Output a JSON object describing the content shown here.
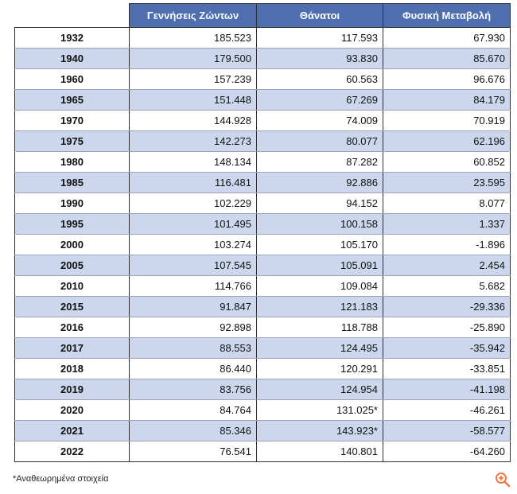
{
  "table": {
    "headers": [
      "",
      "Γεννήσεις Ζώντων",
      "Θάνατοι",
      "Φυσική Μεταβολή"
    ],
    "rows": [
      {
        "year": "1932",
        "births": "185.523",
        "deaths": "117.593",
        "change": "67.930"
      },
      {
        "year": "1940",
        "births": "179.500",
        "deaths": "93.830",
        "change": "85.670"
      },
      {
        "year": "1960",
        "births": "157.239",
        "deaths": "60.563",
        "change": "96.676"
      },
      {
        "year": "1965",
        "births": "151.448",
        "deaths": "67.269",
        "change": "84.179"
      },
      {
        "year": "1970",
        "births": "144.928",
        "deaths": "74.009",
        "change": "70.919"
      },
      {
        "year": "1975",
        "births": "142.273",
        "deaths": "80.077",
        "change": "62.196"
      },
      {
        "year": "1980",
        "births": "148.134",
        "deaths": "87.282",
        "change": "60.852"
      },
      {
        "year": "1985",
        "births": "116.481",
        "deaths": "92.886",
        "change": "23.595"
      },
      {
        "year": "1990",
        "births": "102.229",
        "deaths": "94.152",
        "change": "8.077"
      },
      {
        "year": "1995",
        "births": "101.495",
        "deaths": "100.158",
        "change": "1.337"
      },
      {
        "year": "2000",
        "births": "103.274",
        "deaths": "105.170",
        "change": "-1.896"
      },
      {
        "year": "2005",
        "births": "107.545",
        "deaths": "105.091",
        "change": "2.454"
      },
      {
        "year": "2010",
        "births": "114.766",
        "deaths": "109.084",
        "change": "5.682"
      },
      {
        "year": "2015",
        "births": "91.847",
        "deaths": "121.183",
        "change": "-29.336"
      },
      {
        "year": "2016",
        "births": "92.898",
        "deaths": "118.788",
        "change": "-25.890"
      },
      {
        "year": "2017",
        "births": "88.553",
        "deaths": "124.495",
        "change": "-35.942"
      },
      {
        "year": "2018",
        "births": "86.440",
        "deaths": "120.291",
        "change": "-33.851"
      },
      {
        "year": "2019",
        "births": "83.756",
        "deaths": "124.954",
        "change": "-41.198"
      },
      {
        "year": "2020",
        "births": "84.764",
        "deaths": "131.025*",
        "change": "-46.261"
      },
      {
        "year": "2021",
        "births": "85.346",
        "deaths": "143.923*",
        "change": "-58.577"
      },
      {
        "year": "2022",
        "births": "76.541",
        "deaths": "140.801",
        "change": "-64.260"
      }
    ]
  },
  "footnote": "*Αναθεωρημένα στοιχεία",
  "icons": {
    "zoom": "zoom-in-icon"
  },
  "colors": {
    "header_bg": "#4f6eb0",
    "stripe_bg": "#ccd7ee",
    "zoom_icon": "#f07a45"
  }
}
